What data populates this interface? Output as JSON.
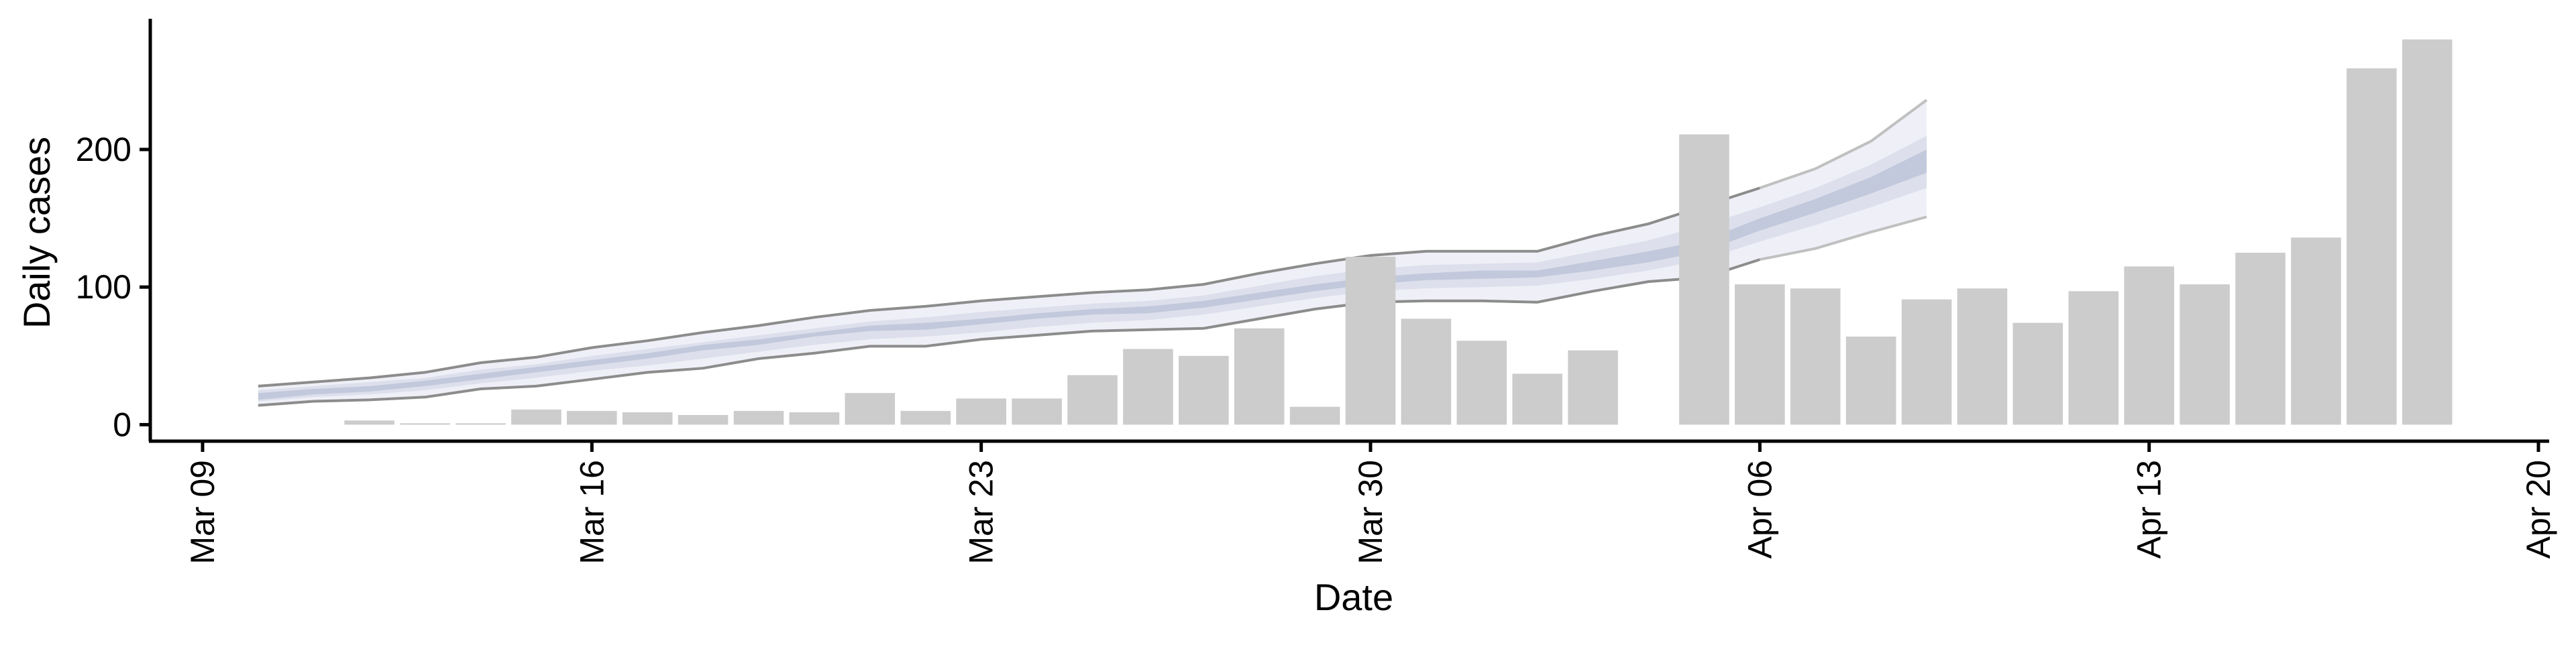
{
  "chart_data": {
    "type": "bar",
    "xlabel": "Date",
    "ylabel": "Daily cases",
    "x_ticks": [
      "Mar 09",
      "Mar 16",
      "Mar 23",
      "Mar 30",
      "Apr 06",
      "Apr 13",
      "Apr 20"
    ],
    "y_ticks": [
      "0",
      "100",
      "200"
    ],
    "xlim": [
      "2020-03-09",
      "2020-04-20"
    ],
    "ylim": [
      -12,
      295
    ],
    "grid": false,
    "colors": {
      "bars": "#cccccc",
      "band_outer_fill": "#eff0f7",
      "band_inner_fill": "#dde0ec",
      "band_core_fill": "#c3c9dc",
      "band_edge_line": "#8c8c8c",
      "band_edge_line_light": "#c0c0c0"
    },
    "bars": [
      {
        "date": "2020-03-12",
        "value": 3
      },
      {
        "date": "2020-03-13",
        "value": 1
      },
      {
        "date": "2020-03-14",
        "value": 1
      },
      {
        "date": "2020-03-15",
        "value": 11
      },
      {
        "date": "2020-03-16",
        "value": 10
      },
      {
        "date": "2020-03-17",
        "value": 9
      },
      {
        "date": "2020-03-18",
        "value": 7
      },
      {
        "date": "2020-03-19",
        "value": 10
      },
      {
        "date": "2020-03-20",
        "value": 9
      },
      {
        "date": "2020-03-21",
        "value": 23
      },
      {
        "date": "2020-03-22",
        "value": 10
      },
      {
        "date": "2020-03-23",
        "value": 19
      },
      {
        "date": "2020-03-24",
        "value": 19
      },
      {
        "date": "2020-03-25",
        "value": 36
      },
      {
        "date": "2020-03-26",
        "value": 55
      },
      {
        "date": "2020-03-27",
        "value": 50
      },
      {
        "date": "2020-03-28",
        "value": 70
      },
      {
        "date": "2020-03-29",
        "value": 13
      },
      {
        "date": "2020-03-30",
        "value": 122
      },
      {
        "date": "2020-03-31",
        "value": 77
      },
      {
        "date": "2020-04-01",
        "value": 61
      },
      {
        "date": "2020-04-02",
        "value": 37
      },
      {
        "date": "2020-04-03",
        "value": 54
      },
      {
        "date": "2020-04-05",
        "value": 211
      },
      {
        "date": "2020-04-06",
        "value": 102
      },
      {
        "date": "2020-04-07",
        "value": 99
      },
      {
        "date": "2020-04-08",
        "value": 64
      },
      {
        "date": "2020-04-09",
        "value": 91
      },
      {
        "date": "2020-04-10",
        "value": 99
      },
      {
        "date": "2020-04-11",
        "value": 74
      },
      {
        "date": "2020-04-12",
        "value": 97
      },
      {
        "date": "2020-04-13",
        "value": 115
      },
      {
        "date": "2020-04-14",
        "value": 102
      },
      {
        "date": "2020-04-15",
        "value": 125
      },
      {
        "date": "2020-04-16",
        "value": 136
      },
      {
        "date": "2020-04-17",
        "value": 259
      },
      {
        "date": "2020-04-18",
        "value": 280
      }
    ],
    "band": {
      "dates": [
        "2020-03-10",
        "2020-03-11",
        "2020-03-12",
        "2020-03-13",
        "2020-03-14",
        "2020-03-15",
        "2020-03-16",
        "2020-03-17",
        "2020-03-18",
        "2020-03-19",
        "2020-03-20",
        "2020-03-21",
        "2020-03-22",
        "2020-03-23",
        "2020-03-24",
        "2020-03-25",
        "2020-03-26",
        "2020-03-27",
        "2020-03-28",
        "2020-03-29",
        "2020-03-30",
        "2020-03-31",
        "2020-04-01",
        "2020-04-02",
        "2020-04-03",
        "2020-04-04",
        "2020-04-05",
        "2020-04-06",
        "2020-04-07",
        "2020-04-08",
        "2020-04-09"
      ],
      "outer_lower": [
        14,
        17,
        18,
        20,
        26,
        28,
        33,
        38,
        41,
        48,
        52,
        57,
        57,
        62,
        65,
        68,
        69,
        70,
        77,
        84,
        89,
        90,
        90,
        89,
        97,
        104,
        107,
        120,
        128,
        140,
        151
      ],
      "outer_upper": [
        28,
        31,
        34,
        38,
        45,
        49,
        56,
        61,
        67,
        72,
        78,
        83,
        86,
        90,
        93,
        96,
        98,
        102,
        110,
        117,
        123,
        126,
        126,
        126,
        137,
        146,
        159,
        172,
        186,
        206,
        236
      ],
      "inner_lower": [
        17,
        20,
        22,
        25,
        30,
        34,
        39,
        43,
        48,
        53,
        58,
        62,
        64,
        67,
        71,
        74,
        76,
        80,
        86,
        92,
        97,
        99,
        100,
        101,
        106,
        112,
        120,
        133,
        145,
        158,
        172
      ],
      "inner_upper": [
        25,
        28,
        31,
        34,
        40,
        44,
        50,
        55,
        60,
        65,
        70,
        75,
        78,
        82,
        85,
        88,
        90,
        94,
        101,
        108,
        113,
        116,
        117,
        118,
        126,
        134,
        145,
        158,
        172,
        189,
        210
      ],
      "core_lower": [
        18,
        22,
        24,
        28,
        33,
        38,
        43,
        48,
        54,
        58,
        64,
        68,
        69,
        73,
        77,
        80,
        81,
        85,
        91,
        97,
        102,
        105,
        106,
        107,
        112,
        118,
        126,
        141,
        154,
        168,
        183
      ],
      "core_upper": [
        23,
        26,
        28,
        32,
        37,
        42,
        47,
        52,
        58,
        62,
        67,
        72,
        74,
        77,
        81,
        84,
        86,
        90,
        96,
        102,
        107,
        110,
        112,
        112,
        119,
        126,
        134,
        150,
        164,
        180,
        200
      ]
    }
  }
}
